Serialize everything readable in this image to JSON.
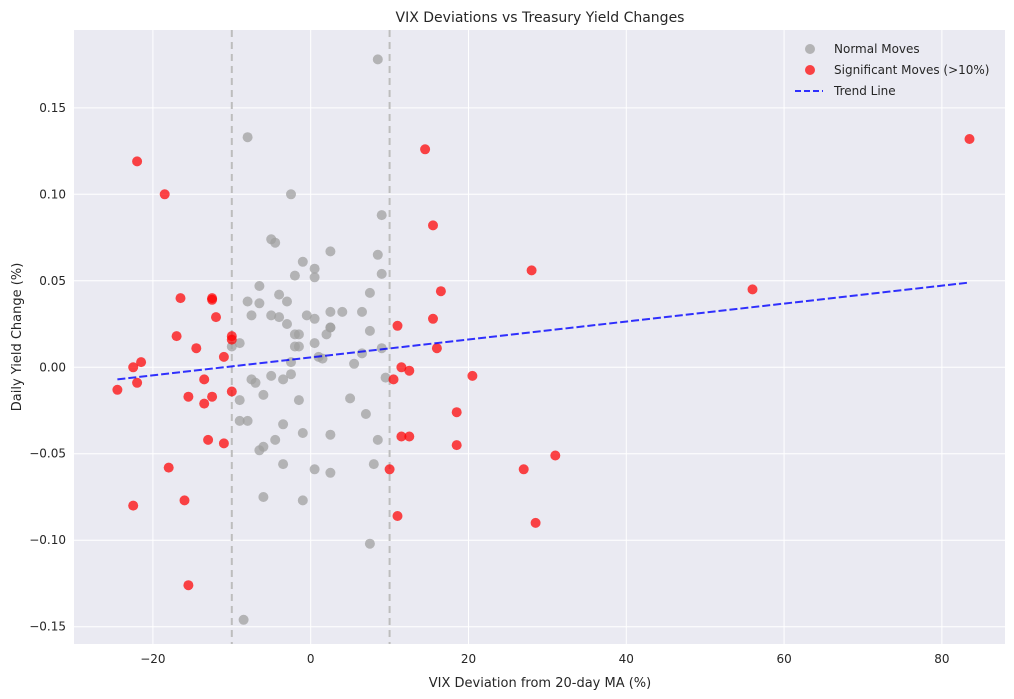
{
  "chart_data": {
    "type": "scatter",
    "title": "VIX Deviations vs Treasury Yield Changes",
    "xlabel": "VIX Deviation from 20-day MA (%)",
    "ylabel": "Daily Yield Change (%)",
    "xlim": [
      -30,
      88
    ],
    "ylim": [
      -0.16,
      0.195
    ],
    "x_ticks": [
      -20,
      0,
      20,
      40,
      60,
      80
    ],
    "x_tick_labels": [
      "−20",
      "0",
      "20",
      "40",
      "60",
      "80"
    ],
    "y_ticks": [
      -0.15,
      -0.1,
      -0.05,
      0.0,
      0.05,
      0.1,
      0.15
    ],
    "y_tick_labels": [
      "−0.15",
      "−0.10",
      "−0.05",
      "0.00",
      "0.05",
      "0.10",
      "0.15"
    ],
    "grid": true,
    "legend_position": "top-right",
    "background_color": "#eaeaf2",
    "vertical_reference_lines": [
      -10,
      10
    ],
    "series": [
      {
        "name": "Normal Moves",
        "color": "#a0a0a0",
        "points": [
          [
            8.5,
            0.178
          ],
          [
            -8.0,
            0.133
          ],
          [
            -2.5,
            0.1
          ],
          [
            9.0,
            0.088
          ],
          [
            -5.0,
            0.074
          ],
          [
            -4.5,
            0.072
          ],
          [
            2.5,
            0.067
          ],
          [
            8.5,
            0.065
          ],
          [
            -1.0,
            0.061
          ],
          [
            0.5,
            0.057
          ],
          [
            9.0,
            0.054
          ],
          [
            -2.0,
            0.053
          ],
          [
            0.5,
            0.052
          ],
          [
            -6.5,
            0.047
          ],
          [
            7.5,
            0.043
          ],
          [
            -4.0,
            0.042
          ],
          [
            -8.0,
            0.038
          ],
          [
            -6.5,
            0.037
          ],
          [
            -3.0,
            0.038
          ],
          [
            2.5,
            0.032
          ],
          [
            4.0,
            0.032
          ],
          [
            6.5,
            0.032
          ],
          [
            -7.5,
            0.03
          ],
          [
            -5.0,
            0.03
          ],
          [
            -4.0,
            0.029
          ],
          [
            -0.5,
            0.03
          ],
          [
            0.5,
            0.028
          ],
          [
            -3.0,
            0.025
          ],
          [
            2.5,
            0.023
          ],
          [
            2.5,
            0.023
          ],
          [
            7.5,
            0.021
          ],
          [
            -2.0,
            0.019
          ],
          [
            -1.5,
            0.019
          ],
          [
            2.0,
            0.019
          ],
          [
            -9.0,
            0.014
          ],
          [
            0.5,
            0.014
          ],
          [
            -10.0,
            0.012
          ],
          [
            -2.0,
            0.012
          ],
          [
            -1.5,
            0.012
          ],
          [
            9.0,
            0.011
          ],
          [
            6.5,
            0.008
          ],
          [
            1.0,
            0.006
          ],
          [
            1.5,
            0.005
          ],
          [
            5.5,
            0.002
          ],
          [
            -2.5,
            0.003
          ],
          [
            -2.5,
            -0.004
          ],
          [
            -5.0,
            -0.005
          ],
          [
            9.5,
            -0.006
          ],
          [
            -7.5,
            -0.007
          ],
          [
            -3.5,
            -0.007
          ],
          [
            -7.0,
            -0.009
          ],
          [
            -6.0,
            -0.016
          ],
          [
            5.0,
            -0.018
          ],
          [
            -9.0,
            -0.019
          ],
          [
            -1.5,
            -0.019
          ],
          [
            7.0,
            -0.027
          ],
          [
            -9.0,
            -0.031
          ],
          [
            -8.0,
            -0.031
          ],
          [
            -3.5,
            -0.033
          ],
          [
            -1.0,
            -0.038
          ],
          [
            2.5,
            -0.039
          ],
          [
            -4.5,
            -0.042
          ],
          [
            8.5,
            -0.042
          ],
          [
            -6.0,
            -0.046
          ],
          [
            -6.5,
            -0.048
          ],
          [
            -3.5,
            -0.056
          ],
          [
            8.0,
            -0.056
          ],
          [
            0.5,
            -0.059
          ],
          [
            2.5,
            -0.061
          ],
          [
            -6.0,
            -0.075
          ],
          [
            -1.0,
            -0.077
          ],
          [
            7.5,
            -0.102
          ],
          [
            -8.5,
            -0.146
          ]
        ]
      },
      {
        "name": "Significant Moves (>10%)",
        "color": "#ff0000",
        "points": [
          [
            83.5,
            0.132
          ],
          [
            14.5,
            0.126
          ],
          [
            -22.0,
            0.119
          ],
          [
            -18.5,
            0.1
          ],
          [
            15.5,
            0.082
          ],
          [
            28.0,
            0.056
          ],
          [
            16.5,
            0.044
          ],
          [
            56.0,
            0.045
          ],
          [
            -16.5,
            0.04
          ],
          [
            -12.5,
            0.04
          ],
          [
            -12.5,
            0.039
          ],
          [
            -12.0,
            0.029
          ],
          [
            15.5,
            0.028
          ],
          [
            11.0,
            0.024
          ],
          [
            -17.0,
            0.018
          ],
          [
            -10.0,
            0.018
          ],
          [
            -10.0,
            0.016
          ],
          [
            -14.5,
            0.011
          ],
          [
            16.0,
            0.011
          ],
          [
            -11.0,
            0.006
          ],
          [
            -21.5,
            0.003
          ],
          [
            -22.5,
            0.0
          ],
          [
            11.5,
            0.0
          ],
          [
            12.5,
            -0.002
          ],
          [
            20.5,
            -0.005
          ],
          [
            -13.5,
            -0.007
          ],
          [
            10.5,
            -0.007
          ],
          [
            -22.0,
            -0.009
          ],
          [
            -24.5,
            -0.013
          ],
          [
            -10.0,
            -0.014
          ],
          [
            -15.5,
            -0.017
          ],
          [
            -12.5,
            -0.017
          ],
          [
            -13.5,
            -0.021
          ],
          [
            18.5,
            -0.026
          ],
          [
            31.0,
            -0.051
          ],
          [
            11.5,
            -0.04
          ],
          [
            12.5,
            -0.04
          ],
          [
            -13.0,
            -0.042
          ],
          [
            -11.0,
            -0.044
          ],
          [
            18.5,
            -0.045
          ],
          [
            -18.0,
            -0.058
          ],
          [
            10.0,
            -0.059
          ],
          [
            27.0,
            -0.059
          ],
          [
            -16.0,
            -0.077
          ],
          [
            -22.5,
            -0.08
          ],
          [
            11.0,
            -0.086
          ],
          [
            28.5,
            -0.09
          ],
          [
            -15.5,
            -0.126
          ]
        ]
      },
      {
        "name": "Trend Line",
        "color": "#0000ff",
        "type": "line",
        "line": [
          [
            -24.5,
            -0.007
          ],
          [
            83.5,
            0.049
          ]
        ]
      }
    ]
  }
}
